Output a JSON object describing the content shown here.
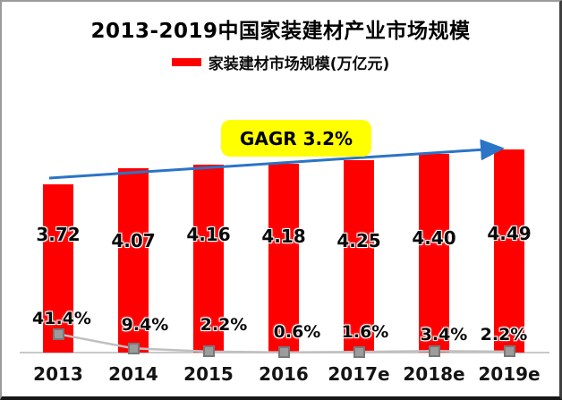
{
  "page": {
    "title": "2013-2019中国家装建材产业市场规模"
  },
  "legend": {
    "label": "家装建材市场规模(万亿元)",
    "swatch_color": "#FF0000"
  },
  "annotation": {
    "label": "GAGR 3.2%",
    "bg_color": "#FFFF00",
    "text_color": "#000000"
  },
  "colors": {
    "bar": "#FF0000",
    "trend_arrow": "#2B74C6",
    "growth_line": "#C0C0C0",
    "growth_marker_fill": "#9C9C9C",
    "growth_marker_border": "#787878",
    "axis_line": "#C9C9C9",
    "title_text": "#000000"
  },
  "chart_data": {
    "type": "bar",
    "title": "2013-2019中国家装建材产业市场规模",
    "categories": [
      "2013",
      "2014",
      "2015",
      "2016",
      "2017e",
      "2018e",
      "2019e"
    ],
    "series": [
      {
        "name": "market-size-bars",
        "type": "bar",
        "label": "家装建材市场规模(万亿元)",
        "unit": "万亿元",
        "values": [
          3.72,
          4.07,
          4.16,
          4.18,
          4.25,
          4.4,
          4.49
        ],
        "value_labels": [
          "3.72",
          "4.07",
          "4.16",
          "4.18",
          "4.25",
          "4.40",
          "4.49"
        ],
        "color": "#FF0000"
      },
      {
        "name": "growth-rate-line",
        "type": "line",
        "unit": "%",
        "values": [
          41.4,
          9.4,
          2.2,
          0.6,
          1.6,
          3.4,
          2.2
        ],
        "value_labels": [
          "41.4%",
          "9.4%",
          "2.2%",
          "0.6%",
          "1.6%",
          "3.4%",
          "2.2%"
        ],
        "color": "#9C9C9C"
      }
    ],
    "trendline": {
      "label": "GAGR 3.2%",
      "cagr_pct": 3.2,
      "color": "#2B74C6"
    },
    "xlabel": "",
    "ylabel": "",
    "ylim": [
      0,
      4.8
    ],
    "grid": false,
    "y_axis": "hidden",
    "legend_position": "top"
  }
}
